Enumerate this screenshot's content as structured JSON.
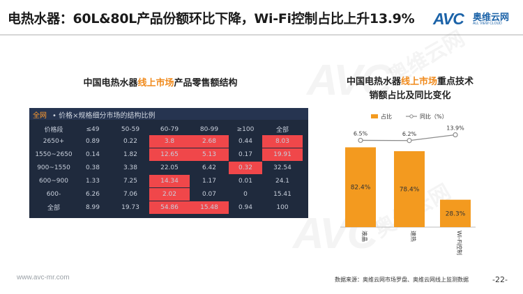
{
  "slide": {
    "title": "电热水器：60L&80L产品份额环比下降，Wi-Fi控制占比上升13.9%",
    "footer_url": "www.avc-mr.com",
    "source": "数据来源：奥维云网市场罗盘、奥维云网线上监测数据",
    "page": "-22-"
  },
  "logo": {
    "mark": "AVC",
    "name_cn": "奥维云网",
    "name_en": "ALL VIEW CLOUD"
  },
  "watermark": {
    "mark": "AVC",
    "name_cn": "奥维云网"
  },
  "left_panel": {
    "title_pre": "中国电热水器",
    "title_hl": "线上市场",
    "title_post": "产品零售额结构",
    "tab": "全网",
    "subtitle": "• 价格×规格细分市场的结构比例"
  },
  "right_panel": {
    "title_pre": "中国电热水器",
    "title_hl": "线上市场",
    "title_post": "重点技术",
    "title_line2": "销额占比及同比变化"
  },
  "colors": {
    "accent": "#f08a1c",
    "hot_cell": "#f0474a",
    "panel_bg": "#1f2a3d",
    "bar": "#f39a1f",
    "line": "#8c8c8c"
  },
  "chart_data": [
    {
      "type": "table",
      "columns": [
        "价格段",
        "≤49",
        "50-59",
        "60-79",
        "80-99",
        "≥100",
        "全部"
      ],
      "rows": [
        [
          "2650+",
          "0.89",
          "0.22",
          "3.8",
          "2.68",
          "0.44",
          "8.03"
        ],
        [
          "1550~2650",
          "0.14",
          "1.82",
          "12.65",
          "5.13",
          "0.17",
          "19.91"
        ],
        [
          "900~1550",
          "0.38",
          "3.38",
          "22.05",
          "6.42",
          "0.32",
          "32.54"
        ],
        [
          "600~900",
          "1.33",
          "7.25",
          "14.34",
          "1.17",
          "0.01",
          "24.1"
        ],
        [
          "600-",
          "6.26",
          "7.06",
          "2.02",
          "0.07",
          "0",
          "15.41"
        ],
        [
          "全部",
          "8.99",
          "19.73",
          "54.86",
          "15.48",
          "0.94",
          "100"
        ]
      ],
      "highlighted": [
        [
          0,
          3
        ],
        [
          0,
          4
        ],
        [
          0,
          6
        ],
        [
          1,
          3
        ],
        [
          1,
          4
        ],
        [
          1,
          6
        ],
        [
          2,
          5
        ],
        [
          3,
          3
        ],
        [
          4,
          3
        ],
        [
          5,
          3
        ],
        [
          5,
          4
        ]
      ]
    },
    {
      "type": "bar",
      "categories": [
        "液晶",
        "速热",
        "Wi-Fi控制"
      ],
      "series": [
        {
          "name": "占比",
          "values": [
            82.4,
            78.4,
            28.3
          ],
          "labels": [
            "82.4%",
            "78.4%",
            "28.3%"
          ],
          "color": "#f39a1f"
        },
        {
          "name": "同比（%）",
          "type": "line",
          "values": [
            6.5,
            6.2,
            13.9
          ],
          "labels": [
            "6.5%",
            "6.2%",
            "13.9%"
          ],
          "color": "#8c8c8c"
        }
      ],
      "ylim": [
        0,
        100
      ],
      "line_ylim": [
        -110,
        20
      ]
    }
  ]
}
